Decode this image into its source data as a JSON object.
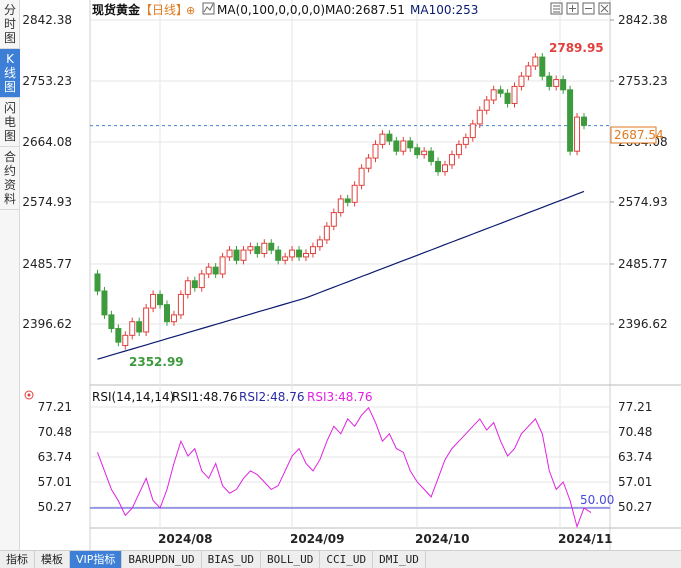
{
  "side_tabs": [
    {
      "label": "分时图",
      "active": false
    },
    {
      "label": "K线图",
      "active": true
    },
    {
      "label": "闪电图",
      "active": false
    },
    {
      "label": "合约资料",
      "active": false
    }
  ],
  "header": {
    "title": "现货黄金",
    "period": "【日线】",
    "ma_label": "MA(0,100,0,0,0,0)",
    "ma0_label": "MA0:2687.51",
    "ma100_label": "MA100:253"
  },
  "header_icons": [
    "settings-icon",
    "zoom-in-icon",
    "zoom-out-icon",
    "close-icon"
  ],
  "price_axis": {
    "ticks": [
      "2842.38",
      "2753.23",
      "2664.08",
      "2574.93",
      "2485.77",
      "2396.62"
    ],
    "current_price_label": "2687.54",
    "high_label": "2789.95",
    "low_label": "2352.99"
  },
  "rsi_panel": {
    "title": "RSI(14,14,14)",
    "rsi1": "RSI1:48.76",
    "rsi2": "RSI2:48.76",
    "rsi3": "RSI3:48.76",
    "ticks": [
      "77.21",
      "70.48",
      "63.74",
      "57.01",
      "50.27"
    ],
    "ref_line_label": "50.00"
  },
  "x_axis": {
    "labels": [
      "2024/08",
      "2024/09",
      "2024/10",
      "2024/11"
    ]
  },
  "bottom_tabs": [
    {
      "label": "指标",
      "active": false
    },
    {
      "label": "模板",
      "active": false
    },
    {
      "label": "VIP指标",
      "active": true
    },
    {
      "label": "BARUPDN_UD",
      "active": false
    },
    {
      "label": "BIAS_UD",
      "active": false
    },
    {
      "label": "BOLL_UD",
      "active": false
    },
    {
      "label": "CCI_UD",
      "active": false
    },
    {
      "label": "DMI_UD",
      "active": false
    }
  ],
  "colors": {
    "up": "#e0413c",
    "down": "#3d9b3d",
    "ma100": "#0a1a6e",
    "rsi": "#e022e0",
    "ref_line": "#4a4adc",
    "grid": "#e6e6e6"
  },
  "chart_data": {
    "type": "candlestick",
    "price_range": [
      2352.99,
      2789.95
    ],
    "current_price": 2687.54,
    "rsi_ref": 50.0
  }
}
